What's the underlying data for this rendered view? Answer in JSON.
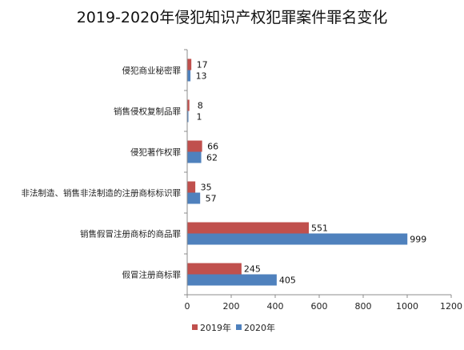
{
  "chart_data": {
    "type": "bar",
    "orientation": "horizontal",
    "title": "2019-2020年侵犯知识产权犯罪案件罪名变化",
    "xlabel": "",
    "ylabel": "",
    "categories": [
      "侵犯商业秘密罪",
      "销售侵权复制品罪",
      "侵犯著作权罪",
      "非法制造、销售非法制造的注册商标标识罪",
      "销售假冒注册商标的商品罪",
      "假冒注册商标罪"
    ],
    "series": [
      {
        "name": "2019年",
        "color": "#c0504d",
        "values": [
          17,
          8,
          66,
          35,
          551,
          245
        ]
      },
      {
        "name": "2020年",
        "color": "#4f81bd",
        "values": [
          13,
          1,
          62,
          57,
          999,
          405
        ]
      }
    ],
    "xlim": [
      0,
      1200
    ],
    "xticks": [
      0,
      200,
      400,
      600,
      800,
      1000,
      1200
    ],
    "grid": false,
    "legend": "bottom-left"
  }
}
